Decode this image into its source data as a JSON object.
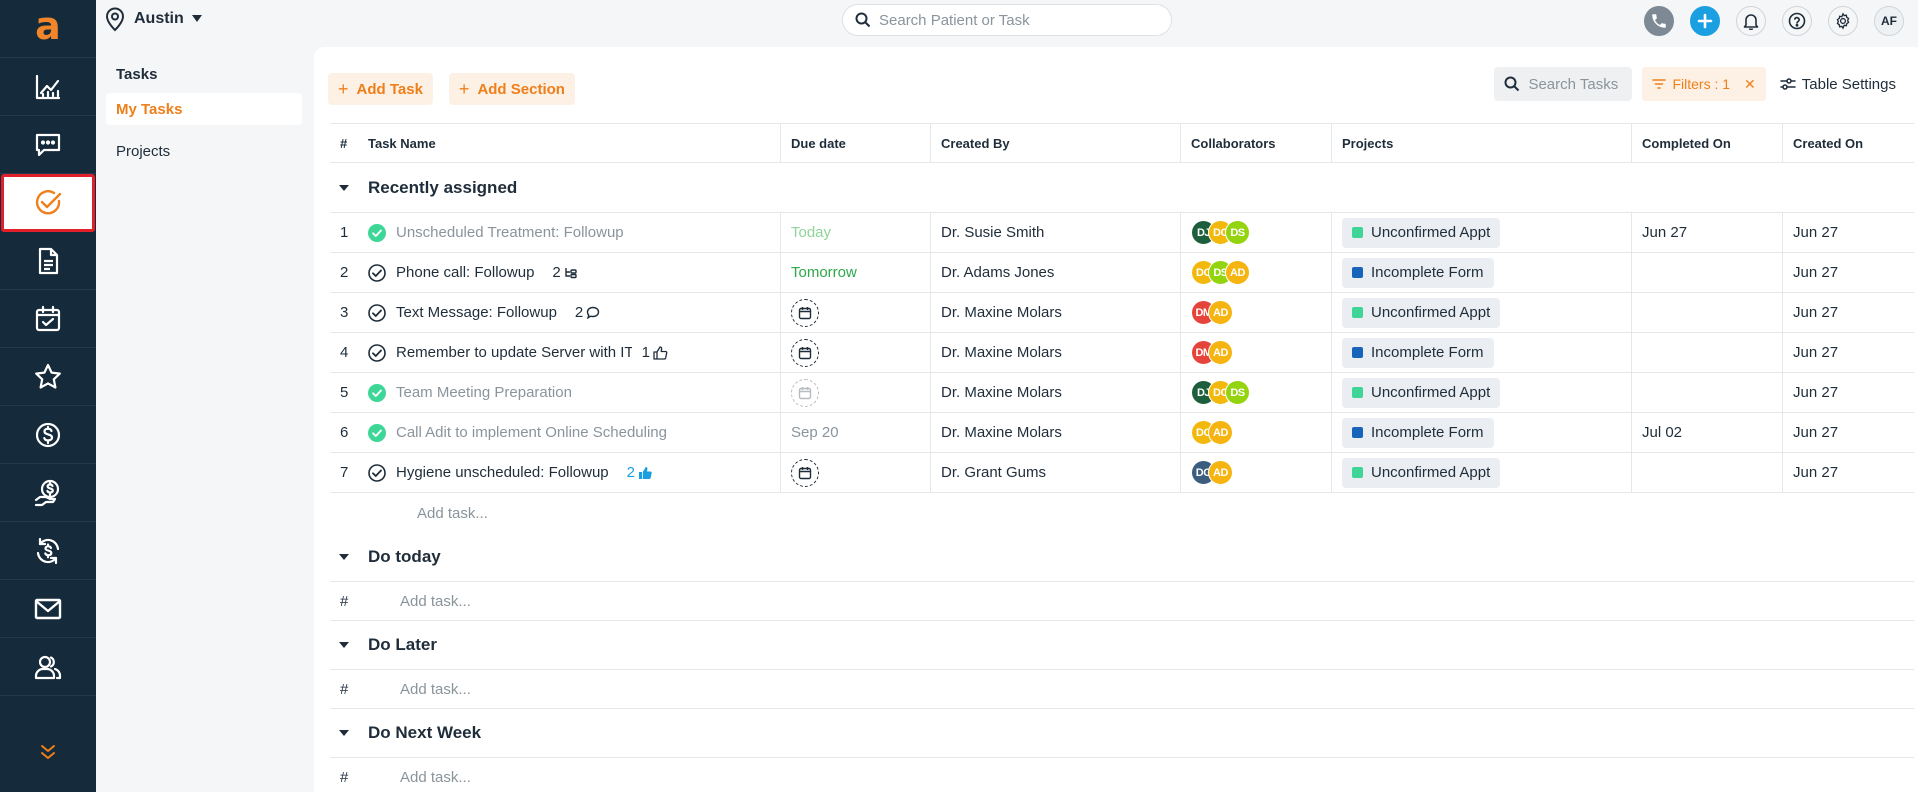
{
  "app": {
    "logo_letter": "a",
    "nav_icons": [
      "analytics-icon",
      "messages-icon",
      "tasks-icon",
      "document-icon",
      "calendar-icon",
      "star-icon",
      "dollar-icon",
      "payment-icon",
      "recurring-payment-icon",
      "mail-icon",
      "users-icon"
    ],
    "active_nav": "tasks-icon",
    "expand_icon": "double-chevron-down-icon"
  },
  "header": {
    "location": "Austin",
    "search_placeholder": "Search Patient or Task",
    "avatar_initials": "AF"
  },
  "subnav": {
    "title": "Tasks",
    "links": [
      {
        "label": "My Tasks",
        "active": true
      },
      {
        "label": "Projects",
        "active": false
      }
    ]
  },
  "toolbar": {
    "add_task": "Add Task",
    "add_section": "Add Section",
    "search_placeholder": "Search Tasks",
    "filters_label": "Filters : 1",
    "table_settings": "Table Settings"
  },
  "table": {
    "columns": {
      "num": "#",
      "name": "Task Name",
      "due": "Due date",
      "created_by": "Created By",
      "collaborators": "Collaborators",
      "projects": "Projects",
      "completed_on": "Completed On",
      "created_on": "Created On"
    },
    "sections": [
      {
        "title": "Recently assigned",
        "rows": [
          {
            "num": "1",
            "name": "Unscheduled Treatment: Followup",
            "done": true,
            "meta": "",
            "due": "Today",
            "by": "Dr. Susie Smith",
            "collab": [
              "DJ",
              "DC",
              "DS"
            ],
            "project": "Unconfirmed Appt",
            "completed": "Jun 27",
            "created": "Jun 27"
          },
          {
            "num": "2",
            "name": "Phone call: Followup",
            "done": false,
            "meta": "2",
            "due": "Tomorrow",
            "by": "Dr. Adams Jones",
            "collab": [
              "DC",
              "DS",
              "AD"
            ],
            "project": "Incomplete Form",
            "completed": "",
            "created": "Jun 27"
          },
          {
            "num": "3",
            "name": "Text Message: Followup",
            "done": false,
            "meta": "2",
            "due": "",
            "by": "Dr. Maxine Molars",
            "collab": [
              "DM",
              "AD"
            ],
            "project": "Unconfirmed Appt",
            "completed": "",
            "created": "Jun 27"
          },
          {
            "num": "4",
            "name": "Remember to update Server with IT te",
            "done": false,
            "meta": "1",
            "due": "",
            "by": "Dr. Maxine Molars",
            "collab": [
              "DM",
              "AD"
            ],
            "project": "Incomplete Form",
            "completed": "",
            "created": "Jun 27"
          },
          {
            "num": "5",
            "name": "Team Meeting Preparation",
            "done": true,
            "meta": "",
            "due": "",
            "by": "Dr. Maxine Molars",
            "collab": [
              "DJ",
              "DC",
              "DS"
            ],
            "project": "Unconfirmed Appt",
            "completed": "",
            "created": "Jun 27"
          },
          {
            "num": "6",
            "name": "Call Adit to implement Online Scheduling",
            "done": true,
            "meta": "",
            "due": "Sep 20",
            "by": "Dr. Maxine Molars",
            "collab": [
              "DC",
              "AD"
            ],
            "project": "Incomplete Form",
            "completed": "Jul 02",
            "created": "Jun 27"
          },
          {
            "num": "7",
            "name": "Hygiene unscheduled: Followup",
            "done": false,
            "meta": "2",
            "due": "",
            "by": "Dr. Grant Gums",
            "collab": [
              "DG",
              "AD"
            ],
            "project": "Unconfirmed Appt",
            "completed": "",
            "created": "Jun 27"
          }
        ],
        "add_task": "Add task..."
      },
      {
        "title": "Do today",
        "hash": "#",
        "add_task": "Add task..."
      },
      {
        "title": "Do Later",
        "hash": "#",
        "add_task": "Add task..."
      },
      {
        "title": "Do Next Week",
        "hash": "#",
        "add_task": "Add task..."
      }
    ]
  },
  "colors": {
    "accent": "#ef7f1a",
    "rail_bg": "#152a3a",
    "DJ": "#1d5e3d",
    "DC": "#f2b90c",
    "DS": "#93d40f",
    "AD": "#f5b410",
    "DM": "#e5443b",
    "DG": "#3b5d7e",
    "unconfirmed": "#3ed697",
    "incomplete": "#1764b8"
  }
}
